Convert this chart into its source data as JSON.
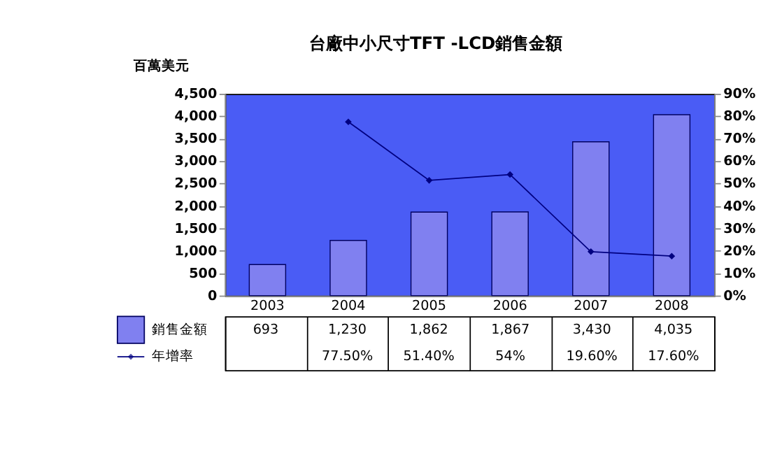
{
  "chart_data": {
    "type": "bar",
    "title": "台廠中小尺寸TFT -LCD銷售金額",
    "ylabel": "百萬美元",
    "categories": [
      "2003",
      "2004",
      "2005",
      "2006",
      "2007",
      "2008"
    ],
    "series": [
      {
        "name": "銷售金額",
        "color": "#8080f0",
        "values": [
          693,
          1230,
          1862,
          1867,
          3430,
          4035
        ],
        "value_labels": [
          "693",
          "1,230",
          "1,862",
          "1,867",
          "3,430",
          "4,035"
        ]
      },
      {
        "name": "年增率",
        "type": "line",
        "axis": "y2",
        "color": "#000080",
        "marker": "diamond",
        "values": [
          null,
          77.5,
          51.4,
          54,
          19.6,
          17.6
        ],
        "value_labels": [
          null,
          "77.50%",
          "51.40%",
          "54%",
          "19.60%",
          "17.60%"
        ]
      }
    ],
    "ylim": [
      0,
      4500
    ],
    "yticks": [
      {
        "value": 0,
        "label": "0"
      },
      {
        "value": 500,
        "label": "500"
      },
      {
        "value": 1000,
        "label": "1,000"
      },
      {
        "value": 1500,
        "label": "1,500"
      },
      {
        "value": 2000,
        "label": "2,000"
      },
      {
        "value": 2500,
        "label": "2,500"
      },
      {
        "value": 3000,
        "label": "3,000"
      },
      {
        "value": 3500,
        "label": "3,500"
      },
      {
        "value": 4000,
        "label": "4,000"
      },
      {
        "value": 4500,
        "label": "4,500"
      }
    ],
    "y2lim": [
      0,
      90
    ],
    "y2ticks": [
      {
        "value": 0,
        "label": "0%"
      },
      {
        "value": 10,
        "label": "10%"
      },
      {
        "value": 20,
        "label": "20%"
      },
      {
        "value": 30,
        "label": "30%"
      },
      {
        "value": 40,
        "label": "40%"
      },
      {
        "value": 50,
        "label": "50%"
      },
      {
        "value": 60,
        "label": "60%"
      },
      {
        "value": 70,
        "label": "70%"
      },
      {
        "value": 80,
        "label": "80%"
      },
      {
        "value": 90,
        "label": "90%"
      }
    ],
    "grid": false,
    "legend": "bottom"
  }
}
